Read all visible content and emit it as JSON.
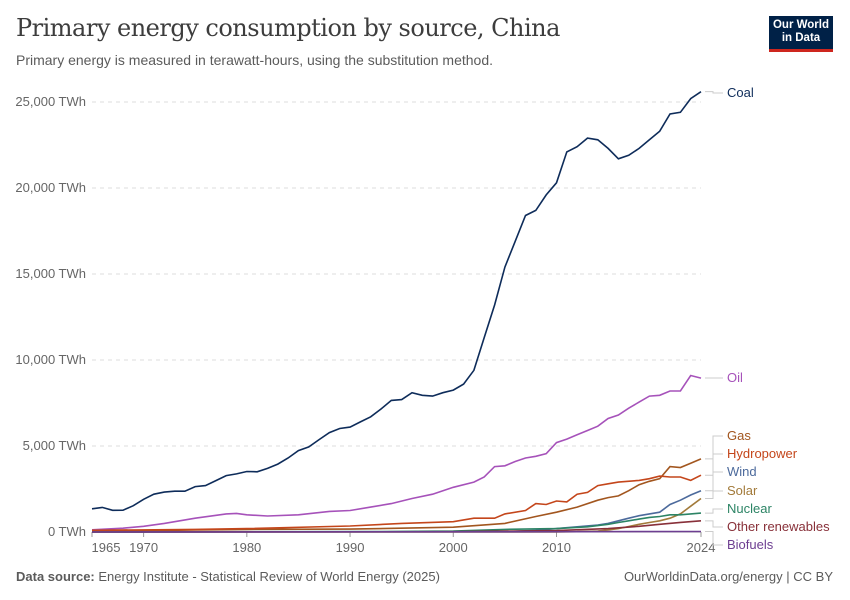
{
  "header": {
    "title": "Primary energy consumption by source, China",
    "subtitle": "Primary energy is measured in terawatt-hours, using the substitution method.",
    "logo": "Our World in Data"
  },
  "footer": {
    "source_label": "Data source:",
    "source": "Energy Institute - Statistical Review of World Energy (2025)",
    "credit": "OurWorldinData.org/energy | CC BY"
  },
  "chart_data": {
    "type": "line",
    "title": "Primary energy consumption by source, China",
    "xlim": [
      1965,
      2024
    ],
    "ylim": [
      0,
      25000
    ],
    "grid": "horizontal dashed",
    "legend": "right, inline labels",
    "y_ticks": [
      {
        "v": 0,
        "label": "0 TWh"
      },
      {
        "v": 5000,
        "label": "5,000 TWh"
      },
      {
        "v": 10000,
        "label": "10,000 TWh"
      },
      {
        "v": 15000,
        "label": "15,000 TWh"
      },
      {
        "v": 20000,
        "label": "20,000 TWh"
      },
      {
        "v": 25000,
        "label": "25,000 TWh"
      }
    ],
    "x_ticks": [
      {
        "v": 1965,
        "label": "1965"
      },
      {
        "v": 1970,
        "label": "1970"
      },
      {
        "v": 1980,
        "label": "1980"
      },
      {
        "v": 1990,
        "label": "1990"
      },
      {
        "v": 2000,
        "label": "2000"
      },
      {
        "v": 2010,
        "label": "2010"
      },
      {
        "v": 2024,
        "label": "2024"
      }
    ],
    "series": [
      {
        "name": "Coal",
        "color": "#0e2c5a",
        "x": [
          1965,
          1966,
          1967,
          1968,
          1969,
          1970,
          1971,
          1972,
          1973,
          1974,
          1975,
          1976,
          1977,
          1978,
          1979,
          1980,
          1981,
          1982,
          1983,
          1984,
          1985,
          1986,
          1987,
          1988,
          1989,
          1990,
          1991,
          1992,
          1993,
          1994,
          1995,
          1996,
          1997,
          1998,
          1999,
          2000,
          2001,
          2002,
          2003,
          2004,
          2005,
          2006,
          2007,
          2008,
          2009,
          2010,
          2011,
          2012,
          2013,
          2014,
          2015,
          2016,
          2017,
          2018,
          2019,
          2020,
          2021,
          2022,
          2023,
          2024
        ],
        "y": [
          1350,
          1430,
          1260,
          1270,
          1530,
          1900,
          2200,
          2320,
          2370,
          2370,
          2640,
          2700,
          2990,
          3280,
          3380,
          3520,
          3500,
          3700,
          3950,
          4300,
          4730,
          4950,
          5370,
          5780,
          6020,
          6100,
          6400,
          6700,
          7150,
          7650,
          7700,
          8100,
          7950,
          7900,
          8100,
          8250,
          8600,
          9400,
          11300,
          13200,
          15400,
          16900,
          18400,
          18700,
          19600,
          20300,
          22100,
          22400,
          22900,
          22800,
          22300,
          21700,
          21900,
          22300,
          22800,
          23300,
          24300,
          24400,
          25200,
          25600
        ]
      },
      {
        "name": "Oil",
        "color": "#a652ba",
        "x": [
          1965,
          1968,
          1970,
          1972,
          1975,
          1978,
          1979,
          1980,
          1982,
          1985,
          1988,
          1990,
          1992,
          1994,
          1996,
          1998,
          2000,
          2002,
          2003,
          2004,
          2005,
          2006,
          2007,
          2008,
          2009,
          2010,
          2011,
          2012,
          2013,
          2014,
          2015,
          2016,
          2017,
          2018,
          2019,
          2020,
          2021,
          2022,
          2023,
          2024
        ],
        "y": [
          130,
          220,
          330,
          500,
          800,
          1050,
          1080,
          1000,
          930,
          1000,
          1200,
          1250,
          1450,
          1650,
          1950,
          2200,
          2600,
          2900,
          3200,
          3800,
          3850,
          4100,
          4300,
          4400,
          4550,
          5200,
          5400,
          5650,
          5900,
          6150,
          6600,
          6800,
          7200,
          7550,
          7900,
          7950,
          8200,
          8200,
          9100,
          8950
        ]
      },
      {
        "name": "Gas",
        "color": "#a2561f",
        "x": [
          1965,
          1975,
          1980,
          1990,
          2000,
          2005,
          2008,
          2010,
          2012,
          2014,
          2015,
          2016,
          2017,
          2018,
          2019,
          2020,
          2021,
          2022,
          2023,
          2024
        ],
        "y": [
          30,
          120,
          150,
          170,
          280,
          500,
          900,
          1150,
          1450,
          1850,
          2000,
          2100,
          2400,
          2750,
          2950,
          3100,
          3800,
          3750,
          4000,
          4250
        ]
      },
      {
        "name": "Hydropower",
        "color": "#c4461b",
        "x": [
          1965,
          1975,
          1980,
          1990,
          1995,
          2000,
          2002,
          2004,
          2005,
          2007,
          2008,
          2009,
          2010,
          2011,
          2012,
          2013,
          2014,
          2015,
          2016,
          2018,
          2019,
          2020,
          2021,
          2022,
          2023,
          2024
        ],
        "y": [
          100,
          150,
          200,
          350,
          500,
          600,
          800,
          800,
          1050,
          1250,
          1650,
          1600,
          1800,
          1750,
          2200,
          2300,
          2700,
          2800,
          2900,
          3000,
          3100,
          3250,
          3200,
          3200,
          3000,
          3300
        ]
      },
      {
        "name": "Wind",
        "color": "#4c6a9c",
        "x": [
          1965,
          2005,
          2008,
          2010,
          2012,
          2014,
          2015,
          2016,
          2017,
          2018,
          2019,
          2020,
          2021,
          2022,
          2023,
          2024
        ],
        "y": [
          0,
          20,
          100,
          200,
          300,
          400,
          500,
          650,
          800,
          950,
          1050,
          1150,
          1600,
          1850,
          2150,
          2400
        ]
      },
      {
        "name": "Solar",
        "color": "#a27a3a",
        "x": [
          1965,
          2010,
          2012,
          2014,
          2015,
          2016,
          2017,
          2018,
          2019,
          2020,
          2021,
          2022,
          2023,
          2024
        ],
        "y": [
          0,
          5,
          20,
          60,
          120,
          200,
          320,
          450,
          550,
          650,
          800,
          1050,
          1500,
          1950
        ]
      },
      {
        "name": "Nuclear",
        "color": "#2c8465",
        "x": [
          1965,
          1993,
          2000,
          2005,
          2010,
          2013,
          2015,
          2016,
          2017,
          2018,
          2019,
          2020,
          2021,
          2022,
          2023,
          2024
        ],
        "y": [
          0,
          30,
          50,
          150,
          200,
          300,
          450,
          550,
          650,
          750,
          850,
          900,
          1000,
          1000,
          1050,
          1100
        ]
      },
      {
        "name": "Other renewables",
        "color": "#883039",
        "x": [
          1965,
          2000,
          2010,
          2015,
          2018,
          2020,
          2022,
          2024
        ],
        "y": [
          0,
          20,
          80,
          200,
          330,
          450,
          560,
          650
        ]
      },
      {
        "name": "Biofuels",
        "color": "#6d3e91",
        "x": [
          1965,
          2005,
          2024
        ],
        "y": [
          0,
          10,
          30
        ]
      }
    ]
  }
}
